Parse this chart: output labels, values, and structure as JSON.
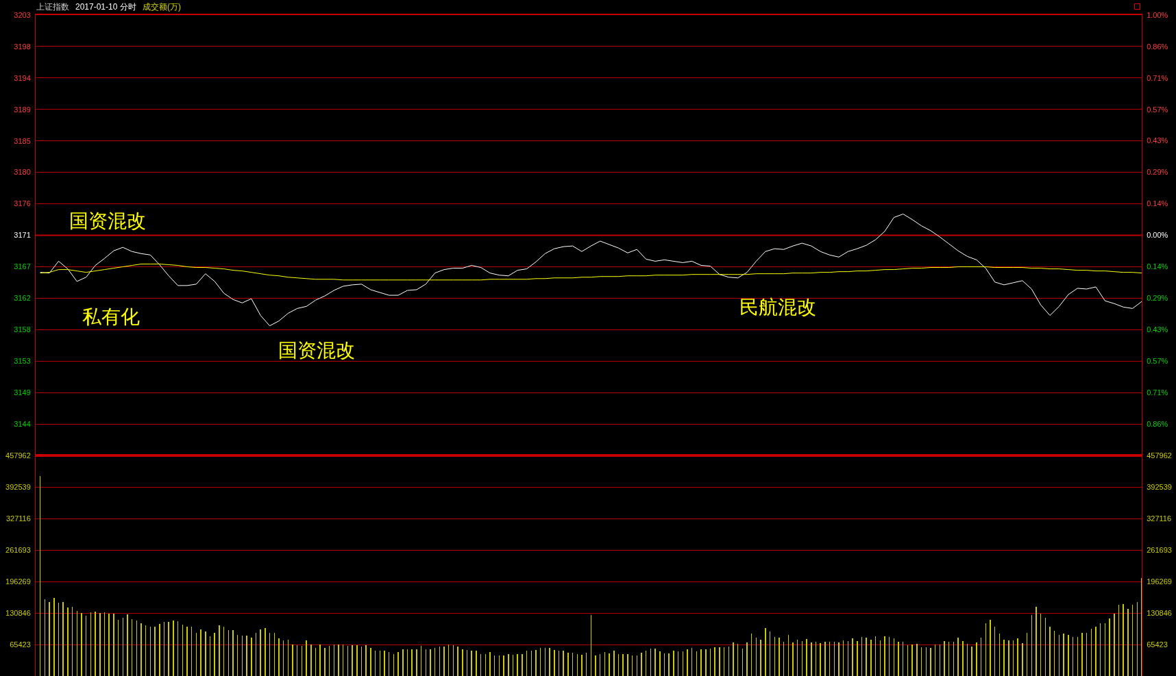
{
  "chart_data": [
    {
      "type": "line",
      "title": "上证指数",
      "subtitle": "2017-01-10 分时",
      "categories": [
        null,
        null,
        null,
        null,
        null,
        null,
        null,
        null,
        null,
        null,
        null,
        null,
        null,
        null,
        null,
        null,
        null,
        null,
        null,
        null,
        null,
        null,
        null,
        null,
        null,
        null,
        null,
        null,
        null,
        null,
        null,
        null,
        null,
        null,
        null,
        null,
        null,
        null,
        null,
        null,
        null,
        null,
        null,
        null,
        null,
        null,
        null,
        null,
        null,
        null,
        null,
        null,
        null,
        null,
        null,
        null,
        null,
        null,
        null,
        null,
        null,
        null,
        null,
        null,
        null,
        null,
        null,
        null,
        null,
        null,
        null,
        null,
        null,
        null,
        null,
        null,
        null,
        null,
        null,
        null,
        null,
        null,
        null,
        null,
        null,
        null,
        null,
        null,
        null,
        null,
        null,
        null,
        null,
        null,
        null,
        null,
        null,
        null,
        null,
        null,
        null,
        null,
        null,
        null,
        null,
        null,
        null,
        null,
        null,
        null,
        null,
        null,
        null,
        null,
        null,
        null,
        null,
        null,
        null,
        null,
        null
      ],
      "series": [
        {
          "color": "#ffffff",
          "values": [
            3165.9,
            3165.8,
            3167.5,
            3166.4,
            3164.6,
            3165.2,
            3166.9,
            3167.9,
            3169.0,
            3169.5,
            3168.9,
            3168.6,
            3168.4,
            3167.0,
            3165.4,
            3164.0,
            3164.0,
            3164.2,
            3165.7,
            3164.6,
            3162.9,
            3162.0,
            3161.5,
            3162.1,
            3159.7,
            3158.2,
            3158.9,
            3160.0,
            3160.7,
            3161.0,
            3161.9,
            3162.5,
            3163.3,
            3163.9,
            3164.1,
            3164.2,
            3163.4,
            3163.0,
            3162.6,
            3162.6,
            3163.3,
            3163.4,
            3164.2,
            3165.8,
            3166.3,
            3166.5,
            3166.5,
            3166.9,
            3166.6,
            3165.8,
            3165.5,
            3165.4,
            3166.2,
            3166.4,
            3167.4,
            3168.6,
            3169.3,
            3169.6,
            3169.7,
            3168.9,
            3169.7,
            3170.4,
            3169.9,
            3169.4,
            3168.7,
            3169.2,
            3167.8,
            3167.5,
            3167.7,
            3167.5,
            3167.3,
            3167.5,
            3166.9,
            3166.8,
            3165.6,
            3165.2,
            3165.1,
            3165.9,
            3167.5,
            3168.9,
            3169.3,
            3169.2,
            3169.7,
            3170.1,
            3169.7,
            3168.9,
            3168.4,
            3168.1,
            3168.9,
            3169.3,
            3169.8,
            3170.6,
            3171.8,
            3173.8,
            3174.3,
            3173.5,
            3172.6,
            3171.9,
            3171.0,
            3170.0,
            3169.0,
            3168.2,
            3167.7,
            3166.5,
            3164.5,
            3164.1,
            3164.4,
            3164.7,
            3163.5,
            3161.2,
            3159.7,
            3161.0,
            3162.7,
            3163.6,
            3163.5,
            3163.8,
            3161.8,
            3161.4,
            3160.9,
            3160.7,
            3161.7
          ]
        },
        {
          "color": "#ffff00",
          "values": [
            3165.8,
            3165.9,
            3166.3,
            3166.3,
            3166.1,
            3165.9,
            3166.1,
            3166.3,
            3166.5,
            3166.7,
            3166.9,
            3167.1,
            3167.1,
            3167.1,
            3167.0,
            3166.9,
            3166.7,
            3166.6,
            3166.6,
            3166.5,
            3166.4,
            3166.2,
            3166.1,
            3165.9,
            3165.7,
            3165.5,
            3165.4,
            3165.2,
            3165.1,
            3165.0,
            3164.9,
            3164.9,
            3164.9,
            3164.8,
            3164.8,
            3164.8,
            3164.8,
            3164.8,
            3164.8,
            3164.8,
            3164.8,
            3164.8,
            3164.8,
            3164.8,
            3164.8,
            3164.8,
            3164.8,
            3164.8,
            3164.8,
            3164.9,
            3164.9,
            3164.9,
            3164.9,
            3164.9,
            3165.0,
            3165.0,
            3165.1,
            3165.1,
            3165.1,
            3165.2,
            3165.2,
            3165.3,
            3165.3,
            3165.3,
            3165.4,
            3165.4,
            3165.4,
            3165.5,
            3165.5,
            3165.5,
            3165.5,
            3165.6,
            3165.6,
            3165.6,
            3165.6,
            3165.6,
            3165.6,
            3165.6,
            3165.7,
            3165.7,
            3165.7,
            3165.7,
            3165.8,
            3165.8,
            3165.8,
            3165.9,
            3165.9,
            3166.0,
            3166.0,
            3166.1,
            3166.1,
            3166.2,
            3166.3,
            3166.3,
            3166.4,
            3166.5,
            3166.5,
            3166.6,
            3166.6,
            3166.6,
            3166.7,
            3166.7,
            3166.7,
            3166.7,
            3166.6,
            3166.6,
            3166.6,
            3166.6,
            3166.5,
            3166.5,
            3166.4,
            3166.4,
            3166.3,
            3166.2,
            3166.2,
            3166.1,
            3166.1,
            3166.0,
            3165.9,
            3165.9,
            3165.8
          ]
        }
      ],
      "ylim": [
        3139.53,
        3202.95
      ],
      "yticks": [
        {
          "value": 3144.06,
          "label": "3144"
        },
        {
          "value": 3148.59,
          "label": "3149"
        },
        {
          "value": 3153.12,
          "label": "3153"
        },
        {
          "value": 3157.65,
          "label": "3158"
        },
        {
          "value": 3162.18,
          "label": "3162"
        },
        {
          "value": 3166.71,
          "label": "3167"
        },
        {
          "value": 3171.24,
          "label": "3171"
        },
        {
          "value": 3175.77,
          "label": "3176"
        },
        {
          "value": 3180.3,
          "label": "3180"
        },
        {
          "value": 3184.83,
          "label": "3185"
        },
        {
          "value": 3189.36,
          "label": "3189"
        },
        {
          "value": 3193.89,
          "label": "3194"
        },
        {
          "value": 3198.42,
          "label": "3198"
        },
        {
          "value": 3202.95,
          "label": "3203"
        }
      ],
      "y2lim": [
        -1,
        1
      ],
      "y2ticks": [
        {
          "value": -0.857,
          "label": "0.86%"
        },
        {
          "value": -0.714,
          "label": "0.71%"
        },
        {
          "value": -0.571,
          "label": "0.57%"
        },
        {
          "value": -0.429,
          "label": "0.43%"
        },
        {
          "value": -0.286,
          "label": "0.29%"
        },
        {
          "value": -0.143,
          "label": "0.14%"
        },
        {
          "value": 0,
          "label": "0.00%"
        },
        {
          "value": 0.143,
          "label": "0.14%"
        },
        {
          "value": 0.286,
          "label": "0.29%"
        },
        {
          "value": 0.429,
          "label": "0.43%"
        },
        {
          "value": 0.571,
          "label": "0.57%"
        },
        {
          "value": 0.714,
          "label": "0.71%"
        },
        {
          "value": 0.857,
          "label": "0.86%"
        },
        {
          "value": 1,
          "label": "1.00%"
        }
      ],
      "ref_lines": [
        {
          "axis": "y",
          "value": 3171.24,
          "color": "#d20000"
        }
      ],
      "grid": "y",
      "annotations": [
        "成交额(万)",
        "国资混改",
        "私有化",
        "国资混改",
        "民航混改"
      ]
    },
    {
      "type": "bar",
      "categories": [
        null,
        null,
        null,
        null,
        null,
        null,
        null,
        null,
        null,
        null,
        null,
        null,
        null,
        null,
        null,
        null,
        null,
        null,
        null,
        null,
        null,
        null,
        null,
        null,
        null,
        null,
        null,
        null,
        null,
        null,
        null,
        null,
        null,
        null,
        null,
        null,
        null,
        null,
        null,
        null,
        null,
        null,
        null,
        null,
        null,
        null,
        null,
        null,
        null,
        null,
        null,
        null,
        null,
        null,
        null,
        null,
        null,
        null,
        null,
        null,
        null,
        null,
        null,
        null,
        null,
        null,
        null,
        null,
        null,
        null,
        null,
        null,
        null,
        null,
        null,
        null,
        null,
        null,
        null,
        null,
        null,
        null,
        null,
        null,
        null,
        null,
        null,
        null,
        null,
        null,
        null,
        null,
        null,
        null,
        null,
        null,
        null,
        null,
        null,
        null,
        null,
        null,
        null,
        null,
        null,
        null,
        null,
        null,
        null,
        null,
        null,
        null,
        null,
        null,
        null,
        null,
        null,
        null,
        null,
        null,
        null,
        null,
        null,
        null,
        null,
        null,
        null,
        null,
        null,
        null,
        null,
        null,
        null,
        null,
        null,
        null,
        null,
        null,
        null,
        null,
        null,
        null,
        null,
        null,
        null,
        null,
        null,
        null,
        null,
        null,
        null,
        null,
        null,
        null,
        null,
        null,
        null,
        null,
        null,
        null,
        null,
        null,
        null,
        null,
        null,
        null,
        null,
        null,
        null,
        null,
        null,
        null,
        null,
        null,
        null,
        null,
        null,
        null,
        null,
        null,
        null,
        null,
        null,
        null,
        null,
        null,
        null,
        null,
        null,
        null,
        null,
        null,
        null,
        null,
        null,
        null,
        null,
        null,
        null,
        null,
        null,
        null,
        null,
        null,
        null,
        null,
        null,
        null,
        null,
        null,
        null,
        null,
        null,
        null,
        null,
        null,
        null,
        null,
        null,
        null,
        null,
        null,
        null,
        null,
        null,
        null,
        null,
        null,
        null,
        null,
        null,
        null,
        null,
        null,
        null,
        null,
        null,
        null,
        null,
        null,
        null
      ],
      "values": [
        415000,
        160000,
        154000,
        162000,
        152000,
        154000,
        142000,
        144000,
        135000,
        131000,
        125000,
        132000,
        133000,
        131000,
        132000,
        129000,
        129000,
        117000,
        121000,
        128000,
        118000,
        115000,
        109000,
        105000,
        103000,
        103000,
        108000,
        112000,
        113000,
        115000,
        114000,
        107000,
        103000,
        103000,
        89000,
        97000,
        92000,
        82000,
        90000,
        105000,
        102000,
        95000,
        96000,
        85000,
        84000,
        84000,
        80000,
        89000,
        97000,
        100000,
        90000,
        90000,
        78000,
        74000,
        76000,
        66000,
        64000,
        62000,
        74000,
        65000,
        59000,
        66000,
        59000,
        62000,
        66000,
        65000,
        66000,
        62000,
        64000,
        64000,
        61000,
        64000,
        59000,
        53000,
        52000,
        52000,
        50000,
        45000,
        50000,
        56000,
        56000,
        56000,
        55000,
        62000,
        56000,
        56000,
        58000,
        61000,
        61000,
        65000,
        64000,
        61000,
        56000,
        54000,
        52000,
        53000,
        45000,
        46000,
        50000,
        43000,
        43000,
        42000,
        46000,
        44000,
        46000,
        46000,
        52000,
        52000,
        54000,
        59000,
        58000,
        58000,
        54000,
        53000,
        52000,
        49000,
        49000,
        45000,
        44000,
        48000,
        127000,
        43000,
        45000,
        50000,
        47000,
        53000,
        45000,
        46000,
        45000,
        43000,
        42000,
        48000,
        52000,
        57000,
        57000,
        51000,
        47000,
        47000,
        52000,
        51000,
        51000,
        56000,
        58000,
        51000,
        55000,
        55000,
        57000,
        60000,
        60000,
        60000,
        61000,
        69000,
        67000,
        57000,
        69000,
        88000,
        79000,
        76000,
        99000,
        92000,
        81000,
        79000,
        71000,
        86000,
        69000,
        76000,
        72000,
        77000,
        69000,
        71000,
        68000,
        71000,
        71000,
        71000,
        69000,
        74000,
        73000,
        78000,
        72000,
        81000,
        79000,
        76000,
        82000,
        74000,
        83000,
        81000,
        78000,
        71000,
        71000,
        64000,
        66000,
        67000,
        60000,
        60000,
        58000,
        65000,
        65000,
        72000,
        71000,
        71000,
        79000,
        72000,
        67000,
        61000,
        69000,
        79000,
        110000,
        116000,
        102000,
        88000,
        76000,
        74000,
        74000,
        78000,
        68000,
        90000,
        127000,
        144000,
        129000,
        121000,
        102000,
        94000,
        85000,
        88000,
        85000,
        81000,
        81000,
        90000,
        90000,
        98000,
        103000,
        109000,
        109000,
        119000,
        130000,
        148000,
        150000,
        139000,
        148000,
        154000,
        204000
      ],
      "color": "#cccc00",
      "ylim": [
        0,
        457962
      ],
      "yticks": [
        65423,
        130846,
        196269,
        261693,
        327116,
        392539,
        457962
      ],
      "y2lim": [
        0,
        457962
      ],
      "y2ticks": [
        65423,
        130846,
        196269,
        261693,
        327116,
        392539,
        457962
      ],
      "grid": "y"
    }
  ]
}
